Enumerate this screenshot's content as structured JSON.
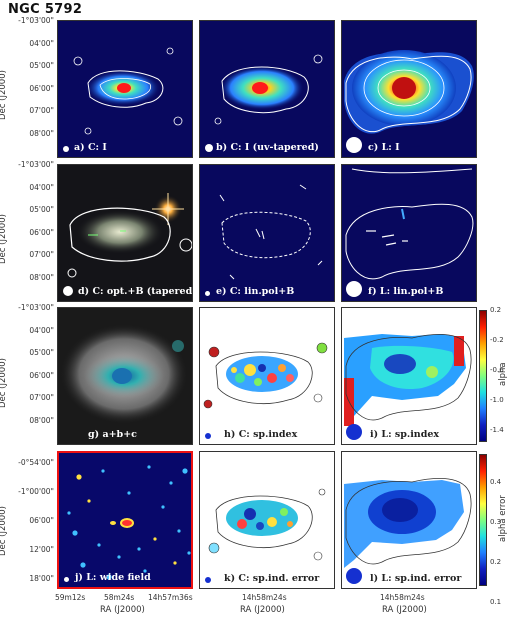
{
  "title": "NGC 5792",
  "dec_axis_label": "Dec (J2000)",
  "ra_axis_label": "RA (J2000)",
  "dec_ticks_main": [
    "-1°03'00\"",
    "04'00\"",
    "05'00\"",
    "06'00\"",
    "07'00\"",
    "08'00\""
  ],
  "dec_ticks_wide": [
    "-0°54'00\"",
    "-1°00'00\"",
    "06'00\"",
    "12'00\"",
    "18'00\""
  ],
  "ra_ticks_wide": [
    "59m12s",
    "58m24s",
    "14h57m36s"
  ],
  "ra_tick_mid": "14h58m24s",
  "panels": {
    "a": "a) C: I",
    "b": "b) C: I (uv-tapered)",
    "c": "c) L: I",
    "d": "d) C: opt.+B (tapered)",
    "e": "e) C: lin.pol+B",
    "f": "f) L: lin.pol+B",
    "g": "g) a+b+c",
    "h": "h) C: sp.index",
    "i": "i) L: sp.index",
    "j": "j) L: wide field",
    "k": "k) C: sp.ind. error",
    "l": "l) L: sp.ind. error"
  },
  "alpha_colorbar": {
    "label": "alpha",
    "ticks": [
      "0.2",
      "-0.2",
      "-0.6",
      "-1.0",
      "-1.4"
    ]
  },
  "alpha_error_colorbar": {
    "label": "alpha error",
    "ticks": [
      "0.4",
      "0.3",
      "0.2",
      "0.1"
    ]
  },
  "colors": {
    "background_blue": "#08085e",
    "red_border": "#e11111"
  }
}
